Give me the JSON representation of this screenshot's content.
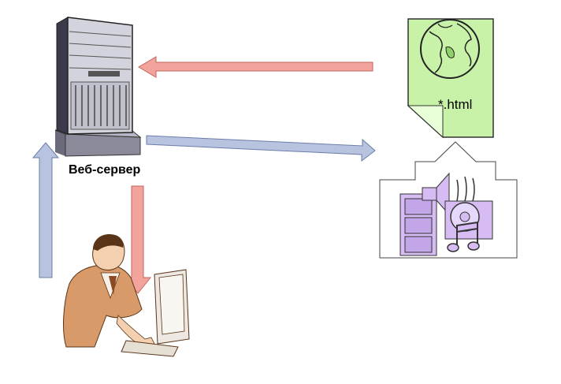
{
  "labels": {
    "server": "Веб-сервер",
    "html_file": "*.html"
  },
  "icons": {
    "server": "tower-server-icon",
    "html_document": "document-with-globe-icon",
    "multimedia": "film-speaker-music-icon",
    "user": "person-at-computer-icon"
  },
  "colors": {
    "request_arrow": "#f2a39b",
    "response_arrow": "#b7c3df",
    "document_fill": "#c8f2a8",
    "multimedia_fill": "#d6bcf2",
    "user_fill": "#d99a6a"
  }
}
